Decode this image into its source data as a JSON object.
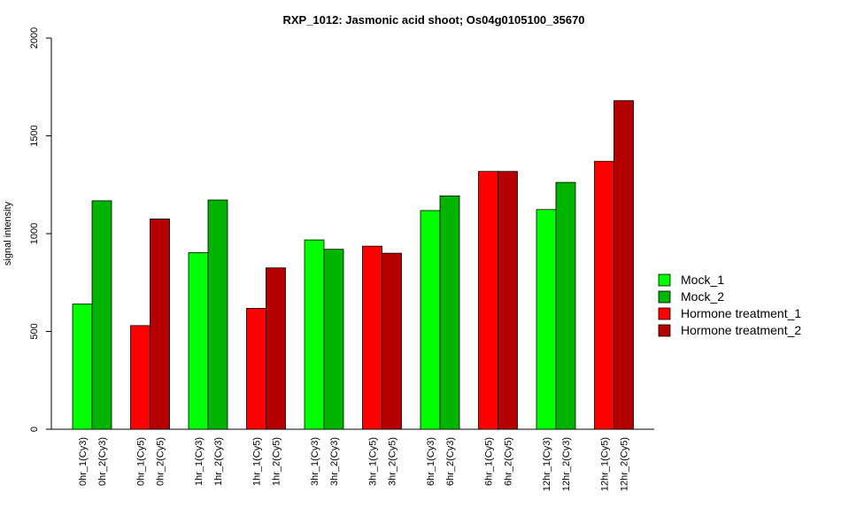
{
  "chart_data": {
    "type": "bar",
    "title": "RXP_1012: Jasmonic acid shoot; Os04g0105100_35670",
    "xlabel": "",
    "ylabel": "signal intensity",
    "ylim": [
      0,
      2000
    ],
    "yticks": [
      0,
      500,
      1000,
      1500,
      2000
    ],
    "grid": false,
    "legend_position": "right",
    "categories": [
      "0hr_1(Cy3)",
      "0hr_2(Cy3)",
      "0hr_1(Cy5)",
      "0hr_2(Cy5)",
      "1hr_1(Cy3)",
      "1hr_2(Cy3)",
      "1hr_1(Cy5)",
      "1hr_2(Cy5)",
      "3hr_1(Cy3)",
      "3hr_2(Cy3)",
      "3hr_1(Cy5)",
      "3hr_2(Cy5)",
      "6hr_1(Cy3)",
      "6hr_2(Cy3)",
      "6hr_1(Cy5)",
      "6hr_2(Cy5)",
      "12hr_1(Cy3)",
      "12hr_2(Cy3)",
      "12hr_1(Cy5)",
      "12hr_2(Cy5)"
    ],
    "values": [
      640,
      1168,
      530,
      1075,
      903,
      1172,
      618,
      825,
      968,
      920,
      936,
      900,
      1118,
      1193,
      1318,
      1318,
      1123,
      1262,
      1370,
      1680
    ],
    "bar_series": [
      0,
      1,
      2,
      3,
      0,
      1,
      2,
      3,
      0,
      1,
      2,
      3,
      0,
      1,
      2,
      3,
      0,
      1,
      2,
      3
    ],
    "series": [
      {
        "name": "Mock_1",
        "color": "#00ff00"
      },
      {
        "name": "Mock_2",
        "color": "#00b400"
      },
      {
        "name": "Hormone treatment_1",
        "color": "#ff0000"
      },
      {
        "name": "Hormone treatment_2",
        "color": "#b40000"
      }
    ]
  }
}
